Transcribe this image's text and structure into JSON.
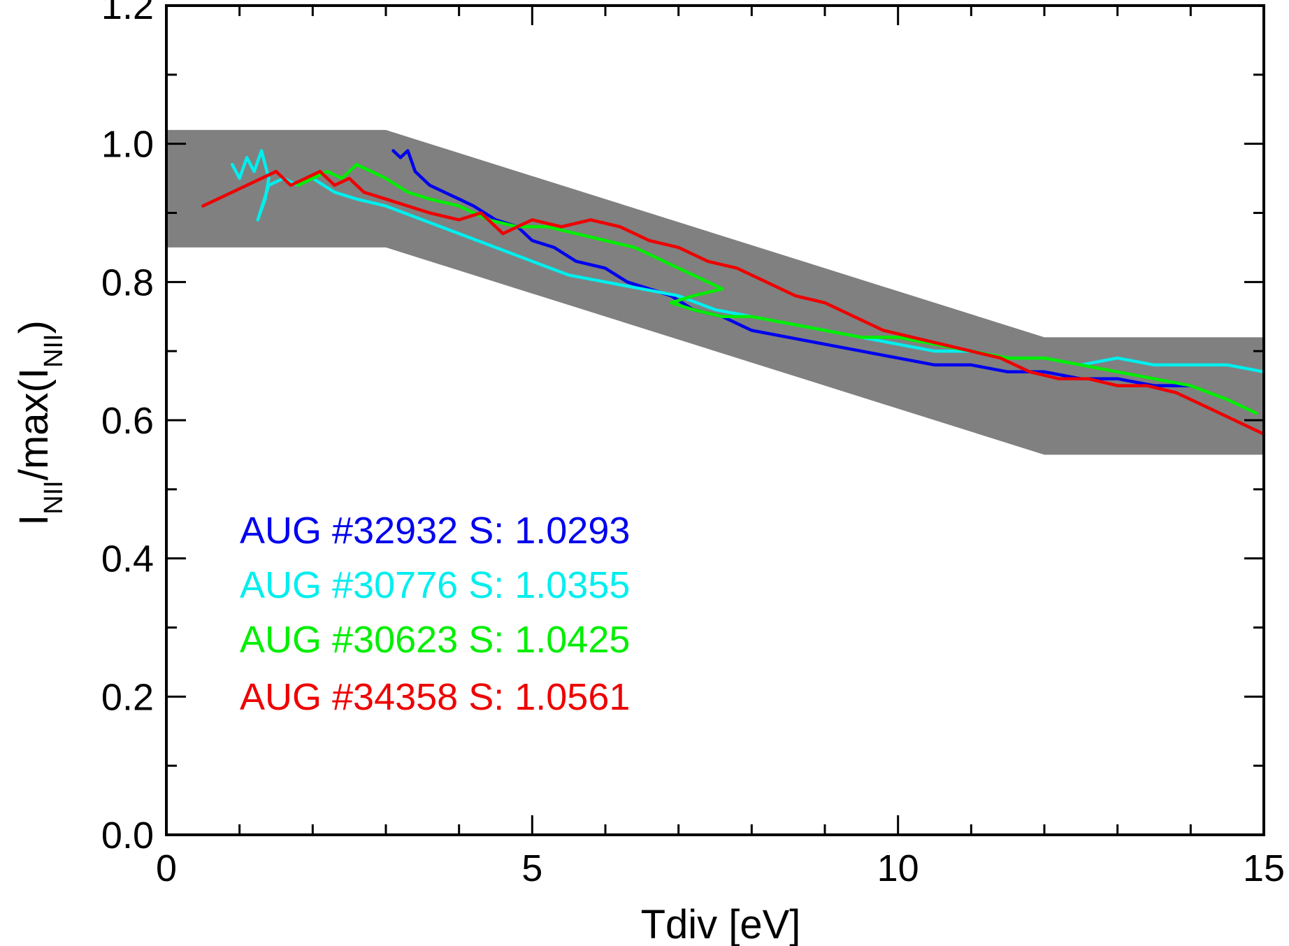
{
  "chart_data": {
    "type": "line",
    "xlabel": "Tdiv [eV]",
    "ylabel": {
      "parts": [
        "I",
        "NII",
        "/max(I",
        "NII",
        ")"
      ]
    },
    "xlim": [
      0,
      15
    ],
    "ylim": [
      0,
      1.2
    ],
    "x_ticks": [
      0,
      5,
      10,
      15
    ],
    "x_tick_labels": [
      "0",
      "5",
      "10",
      "15"
    ],
    "y_ticks": [
      0,
      0.2,
      0.4,
      0.6,
      0.8,
      1.0,
      1.2
    ],
    "y_tick_labels": [
      "0.0",
      "0.2",
      "0.4",
      "0.6",
      "0.8",
      "1.0",
      "1.2"
    ],
    "grid": false,
    "legend_position": "bottom-left inside plot",
    "band": {
      "color": "#808080",
      "upper": [
        [
          0,
          1.02
        ],
        [
          3,
          1.02
        ],
        [
          12,
          0.72
        ],
        [
          15,
          0.72
        ]
      ],
      "lower": [
        [
          0,
          0.85
        ],
        [
          3,
          0.85
        ],
        [
          12,
          0.55
        ],
        [
          15,
          0.55
        ]
      ]
    },
    "series": [
      {
        "name": "AUG #32932 S: 1.0293",
        "color": "#0000ee",
        "x": [
          3.1,
          3.2,
          3.3,
          3.4,
          3.5,
          3.6,
          3.8,
          4.0,
          4.2,
          4.5,
          4.8,
          5.0,
          5.3,
          5.6,
          6.0,
          6.3,
          6.6,
          6.9,
          7.2,
          7.6,
          8.0,
          8.5,
          9.0,
          9.5,
          10.0,
          10.5,
          11.0,
          11.5,
          12.0,
          12.5,
          13.0,
          13.5,
          14.0
        ],
        "y": [
          0.99,
          0.98,
          0.99,
          0.96,
          0.95,
          0.94,
          0.93,
          0.92,
          0.91,
          0.89,
          0.88,
          0.86,
          0.85,
          0.83,
          0.82,
          0.8,
          0.79,
          0.78,
          0.76,
          0.75,
          0.73,
          0.72,
          0.71,
          0.7,
          0.69,
          0.68,
          0.68,
          0.67,
          0.67,
          0.66,
          0.66,
          0.65,
          0.65
        ]
      },
      {
        "name": "AUG #30776 S: 1.0355",
        "color": "#00eeee",
        "x": [
          0.9,
          1.0,
          1.1,
          1.2,
          1.3,
          1.4,
          1.35,
          1.25,
          1.4,
          1.6,
          1.8,
          2.0,
          2.3,
          2.6,
          3.0,
          3.5,
          4.0,
          4.5,
          5.0,
          5.5,
          6.0,
          6.5,
          7.0,
          7.5,
          8.0,
          8.5,
          9.0,
          9.5,
          10.0,
          10.5,
          11.0,
          11.5,
          12.0,
          12.5,
          13.0,
          13.5,
          14.0,
          14.5,
          15.0
        ],
        "y": [
          0.97,
          0.95,
          0.98,
          0.96,
          0.99,
          0.95,
          0.92,
          0.89,
          0.94,
          0.95,
          0.94,
          0.95,
          0.93,
          0.92,
          0.91,
          0.89,
          0.87,
          0.85,
          0.83,
          0.81,
          0.8,
          0.79,
          0.78,
          0.76,
          0.75,
          0.74,
          0.73,
          0.72,
          0.71,
          0.7,
          0.7,
          0.69,
          0.69,
          0.68,
          0.69,
          0.68,
          0.68,
          0.68,
          0.67
        ]
      },
      {
        "name": "AUG #30623 S: 1.0425",
        "color": "#00ee00",
        "x": [
          1.8,
          2.0,
          2.2,
          2.4,
          2.6,
          2.8,
          3.0,
          3.3,
          3.6,
          4.0,
          4.4,
          4.8,
          5.2,
          5.6,
          6.0,
          6.4,
          6.8,
          7.2,
          7.6,
          7.2,
          6.9,
          7.2,
          7.6,
          8.0,
          8.5,
          9.0,
          9.5,
          10.0,
          10.5,
          11.0,
          11.5,
          12.0,
          12.5,
          13.0,
          13.5,
          14.0,
          14.5,
          14.9
        ],
        "y": [
          0.94,
          0.95,
          0.96,
          0.95,
          0.97,
          0.96,
          0.95,
          0.93,
          0.92,
          0.91,
          0.89,
          0.88,
          0.88,
          0.87,
          0.86,
          0.85,
          0.83,
          0.81,
          0.79,
          0.78,
          0.77,
          0.76,
          0.75,
          0.75,
          0.74,
          0.73,
          0.72,
          0.72,
          0.71,
          0.7,
          0.69,
          0.69,
          0.68,
          0.67,
          0.66,
          0.65,
          0.63,
          0.61
        ]
      },
      {
        "name": "AUG #34358 S: 1.0561",
        "color": "#ee0000",
        "x": [
          0.5,
          0.7,
          0.9,
          1.1,
          1.3,
          1.5,
          1.7,
          1.9,
          2.1,
          2.3,
          2.5,
          2.7,
          3.0,
          3.3,
          3.6,
          4.0,
          4.3,
          4.6,
          5.0,
          5.4,
          5.8,
          6.2,
          6.6,
          7.0,
          7.4,
          7.8,
          8.2,
          8.6,
          9.0,
          9.4,
          9.8,
          10.2,
          10.6,
          11.0,
          11.4,
          11.8,
          12.2,
          12.6,
          13.0,
          13.4,
          13.8,
          14.2,
          14.6,
          15.0
        ],
        "y": [
          0.91,
          0.92,
          0.93,
          0.94,
          0.95,
          0.96,
          0.94,
          0.95,
          0.96,
          0.94,
          0.95,
          0.93,
          0.92,
          0.91,
          0.9,
          0.89,
          0.9,
          0.87,
          0.89,
          0.88,
          0.89,
          0.88,
          0.86,
          0.85,
          0.83,
          0.82,
          0.8,
          0.78,
          0.77,
          0.75,
          0.73,
          0.72,
          0.71,
          0.7,
          0.69,
          0.67,
          0.66,
          0.66,
          0.65,
          0.65,
          0.64,
          0.62,
          0.6,
          0.58
        ]
      }
    ]
  }
}
